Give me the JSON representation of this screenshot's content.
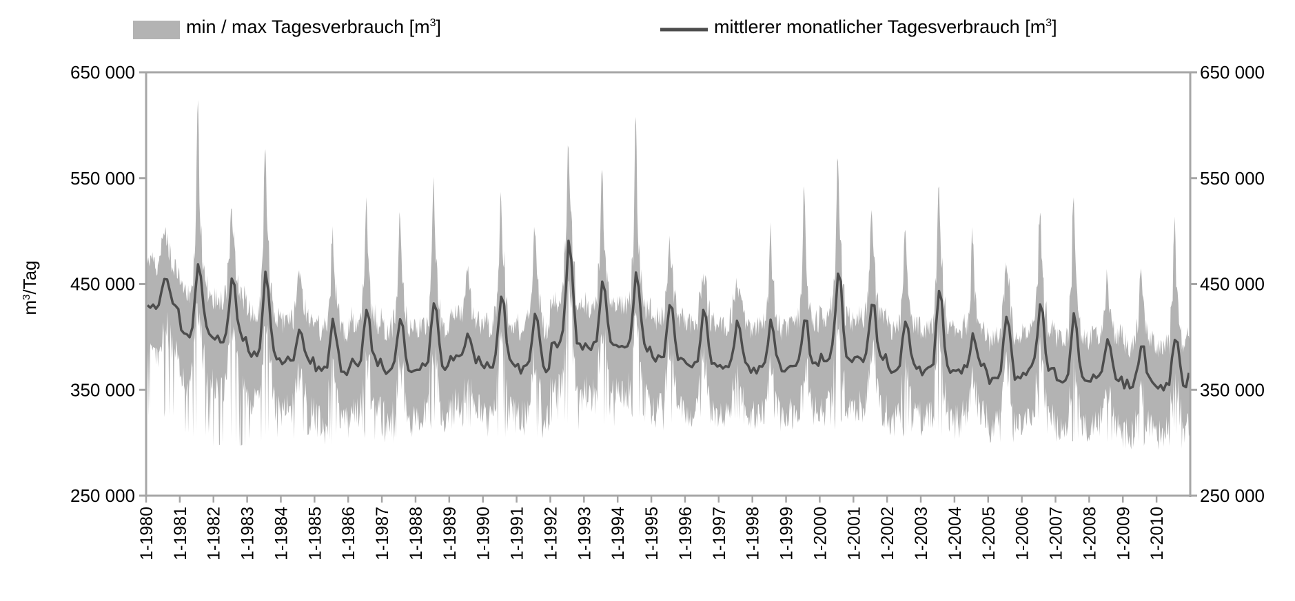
{
  "chart_data": {
    "type": "area",
    "title": "",
    "xlabel": "",
    "ylabel": "m³/Tag",
    "ylim": [
      250000,
      650000
    ],
    "y_ticks": [
      250000,
      350000,
      450000,
      550000,
      650000
    ],
    "y_tick_labels": [
      "250 000",
      "350 000",
      "450 000",
      "550 000",
      "650 000"
    ],
    "secondary_y_axis": true,
    "x_start": "1980-01",
    "x_end": "2010-12",
    "x_tick_labels": [
      "1-1980",
      "1-1981",
      "1-1982",
      "1-1983",
      "1-1984",
      "1-1985",
      "1-1986",
      "1-1987",
      "1-1988",
      "1-1989",
      "1-1990",
      "1-1991",
      "1-1992",
      "1-1993",
      "1-1994",
      "1-1995",
      "1-1996",
      "1-1997",
      "1-1998",
      "1-1999",
      "1-2000",
      "1-2001",
      "1-2002",
      "1-2003",
      "1-2004",
      "1-2005",
      "1-2006",
      "1-2007",
      "1-2008",
      "1-2009",
      "1-2010"
    ],
    "grid": false,
    "legend_position": "top",
    "colors": {
      "band": "#b3b3b3",
      "line": "#4d4d4d",
      "axis": "#a6a6a6"
    },
    "series": [
      {
        "name": "min / max Tagesverbrauch [m³]",
        "kind": "band",
        "annual_summer_peak_max": [
          492000,
          610000,
          515000,
          560000,
          460000,
          490000,
          522000,
          510000,
          535000,
          460000,
          522000,
          500000,
          565000,
          555000,
          592000,
          480000,
          440000,
          440000,
          490000,
          533000,
          560000,
          510000,
          505000,
          527000,
          490000,
          455000,
          510000,
          528000,
          455000,
          460000,
          502000
        ],
        "annual_min": [
          320000,
          305000,
          295000,
          300000,
          300000,
          298000,
          302000,
          300000,
          312000,
          312000,
          300000,
          304000,
          310000,
          315000,
          318000,
          310000,
          315000,
          320000,
          318000,
          320000,
          312000,
          312000,
          305000,
          305000,
          300000,
          298000,
          310000,
          300000,
          300000,
          290000,
          305000
        ]
      },
      {
        "name": "mittlerer monatlicher Tagesverbrauch [m³]",
        "kind": "line",
        "annual_summer_peak": [
          460000,
          473000,
          455000,
          462000,
          410000,
          415000,
          425000,
          420000,
          435000,
          400000,
          442000,
          425000,
          493000,
          450000,
          462000,
          435000,
          425000,
          420000,
          415000,
          420000,
          466000,
          435000,
          420000,
          447000,
          400000,
          425000,
          430000,
          420000,
          400000,
          395000,
          402000
        ],
        "annual_winter_low": [
          430000,
          403000,
          398000,
          383000,
          378000,
          368000,
          375000,
          368000,
          372000,
          378000,
          374000,
          370000,
          392000,
          392000,
          390000,
          378000,
          375000,
          370000,
          370000,
          372000,
          380000,
          380000,
          370000,
          368000,
          370000,
          360000,
          368000,
          360000,
          362000,
          356000,
          352000
        ],
        "end_value_2010_12": 366000
      }
    ]
  },
  "legend": {
    "band_label": "min / max Tagesverbrauch [m",
    "band_sup": "3",
    "band_close": "]",
    "line_label": "mittlerer monatlicher Tagesverbrauch [m",
    "line_sup": "3",
    "line_close": "]"
  },
  "axes": {
    "left_labels": [
      "650 000",
      "550 000",
      "450 000",
      "350 000",
      "250 000"
    ],
    "right_labels": [
      "650 000",
      "550 000",
      "450 000",
      "350 000",
      "250 000"
    ],
    "y_title_prefix": "m",
    "y_title_sup": "3",
    "y_title_suffix": "/Tag"
  }
}
